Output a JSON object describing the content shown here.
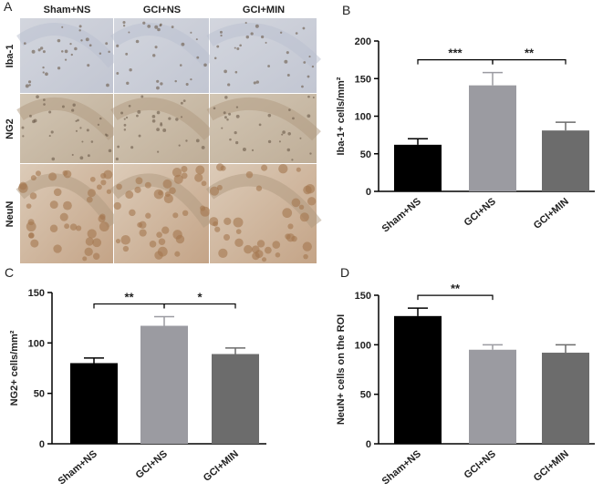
{
  "micrograph_panel": {
    "label": "A",
    "columns": [
      "Sham+NS",
      "GCI+NS",
      "GCI+MIN"
    ],
    "rows": [
      "Iba-1",
      "NG2",
      "NeuN"
    ]
  },
  "chart_data": [
    {
      "type": "bar",
      "panel_label": "B",
      "ylabel": "Iba-1+ cells/mm²",
      "categories": [
        "Sham+NS",
        "GCI+NS",
        "GCI+MIN"
      ],
      "values": [
        62,
        141,
        81
      ],
      "errors": [
        8,
        17,
        11
      ],
      "colors": [
        "#000000",
        "#9b9ba1",
        "#6c6c6c"
      ],
      "ylim": [
        0,
        200
      ],
      "yticks": [
        0,
        50,
        100,
        150,
        200
      ],
      "annotations": [
        {
          "text": "***",
          "from": 0,
          "to": 1
        },
        {
          "text": "**",
          "from": 1,
          "to": 2
        }
      ]
    },
    {
      "type": "bar",
      "panel_label": "C",
      "ylabel": "NG2+ cells/mm²",
      "categories": [
        "Sham+NS",
        "GCI+NS",
        "GCI+MIN"
      ],
      "values": [
        80,
        117,
        89
      ],
      "errors": [
        5,
        9,
        6
      ],
      "colors": [
        "#000000",
        "#9b9ba1",
        "#6c6c6c"
      ],
      "ylim": [
        0,
        150
      ],
      "yticks": [
        0,
        50,
        100,
        150
      ],
      "annotations": [
        {
          "text": "**",
          "from": 0,
          "to": 1
        },
        {
          "text": "*",
          "from": 1,
          "to": 2
        }
      ]
    },
    {
      "type": "bar",
      "panel_label": "D",
      "ylabel": "NeuN+ cells on the ROI",
      "categories": [
        "Sham+NS",
        "GCI+NS",
        "GCI+MIN"
      ],
      "values": [
        129,
        95,
        92
      ],
      "errors": [
        8,
        5,
        8
      ],
      "colors": [
        "#000000",
        "#9b9ba1",
        "#6c6c6c"
      ],
      "ylim": [
        0,
        150
      ],
      "yticks": [
        0,
        50,
        100,
        150
      ],
      "annotations": [
        {
          "text": "**",
          "from": 0,
          "to": 1
        }
      ]
    }
  ]
}
